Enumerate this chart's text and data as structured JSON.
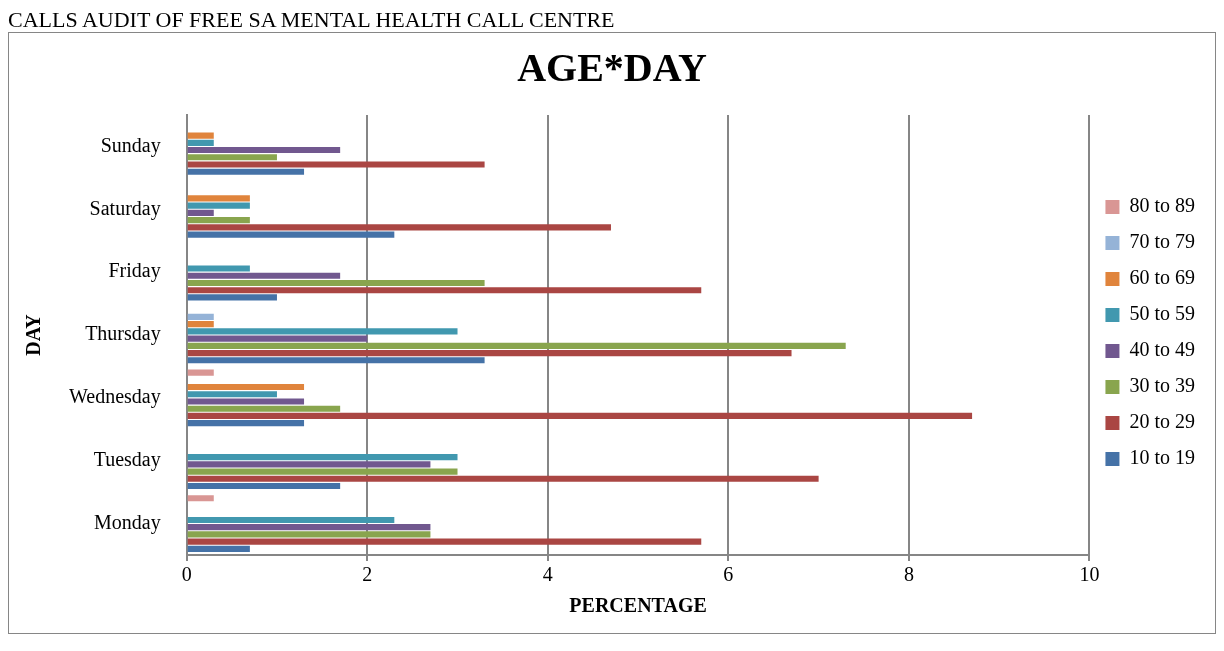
{
  "chart_data": {
    "type": "bar",
    "orientation": "horizontal",
    "title": "AGE*DAY",
    "xlabel": "PERCENTAGE",
    "ylabel": "DAY",
    "annotations": [
      "CALLS AUDIT OF FREE SA MENTAL HEALTH CALL CENTRE"
    ],
    "categories": [
      "Sunday",
      "Saturday",
      "Friday",
      "Thursday",
      "Wednesday",
      "Tuesday",
      "Monday"
    ],
    "xlim": [
      0,
      10
    ],
    "xticks": [
      0,
      2,
      4,
      6,
      8,
      10
    ],
    "grid": "x",
    "legend": "right",
    "series": [
      {
        "name": "80 to 89",
        "color": "#d99694",
        "values": [
          null,
          null,
          null,
          null,
          0.3,
          null,
          0.3
        ]
      },
      {
        "name": "70 to 79",
        "color": "#95b3d7",
        "values": [
          null,
          null,
          null,
          0.3,
          null,
          null,
          null
        ]
      },
      {
        "name": "60 to 69",
        "color": "#e0843c",
        "values": [
          0.3,
          0.7,
          null,
          0.3,
          1.3,
          null,
          null
        ]
      },
      {
        "name": "50 to 59",
        "color": "#4198af",
        "values": [
          0.3,
          0.7,
          0.7,
          3.0,
          1.0,
          3.0,
          2.3
        ]
      },
      {
        "name": "40 to 49",
        "color": "#71588f",
        "values": [
          1.7,
          0.3,
          1.7,
          2.0,
          1.3,
          2.7,
          2.7
        ]
      },
      {
        "name": "30 to 39",
        "color": "#89a54e",
        "values": [
          1.0,
          0.7,
          3.3,
          7.3,
          1.7,
          3.0,
          2.7
        ]
      },
      {
        "name": "20 to 29",
        "color": "#aa4643",
        "values": [
          3.3,
          4.7,
          5.7,
          6.7,
          8.7,
          7.0,
          5.7
        ]
      },
      {
        "name": "10 to 19",
        "color": "#4572a7",
        "values": [
          1.3,
          2.3,
          1.0,
          3.3,
          1.3,
          1.7,
          0.7
        ]
      }
    ]
  }
}
